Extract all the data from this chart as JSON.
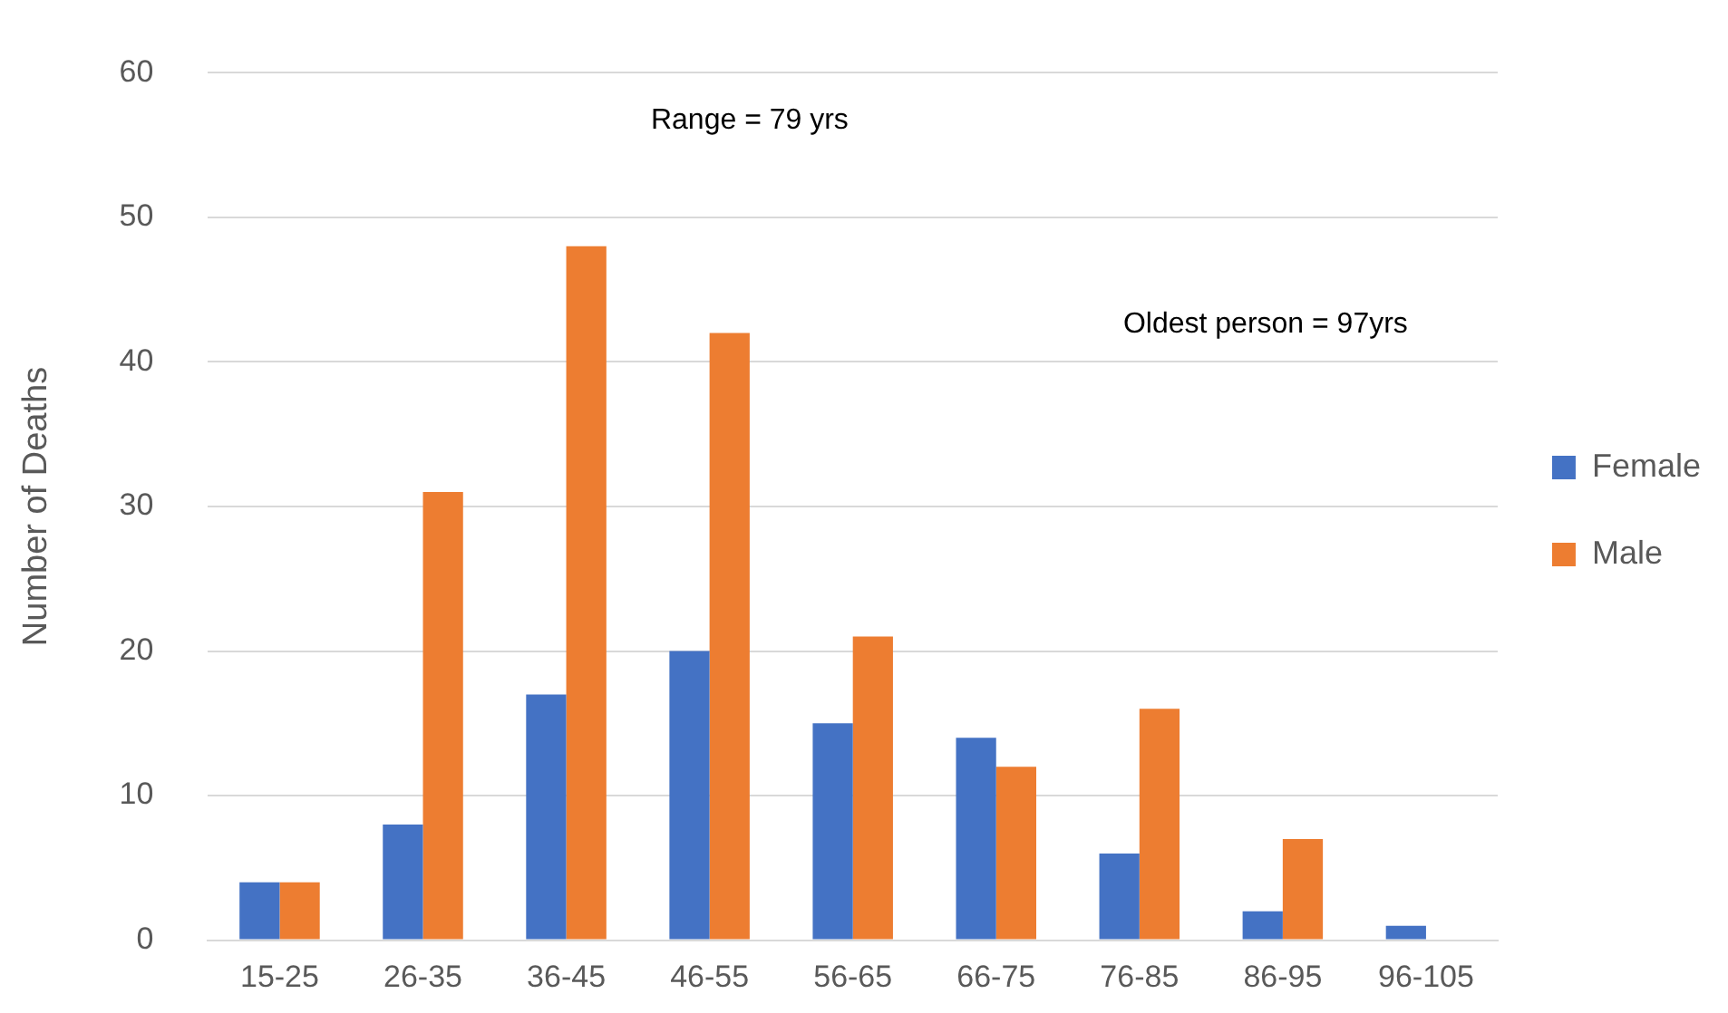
{
  "chart_data": {
    "type": "bar",
    "ylabel": "Number of Deaths",
    "categories": [
      "15-25",
      "26-35",
      "36-45",
      "46-55",
      "56-65",
      "66-75",
      "76-85",
      "86-95",
      "96-105"
    ],
    "series": [
      {
        "name": "Female",
        "color": "#4472c4",
        "values": [
          4,
          8,
          17,
          20,
          15,
          14,
          6,
          2,
          1
        ]
      },
      {
        "name": "Male",
        "color": "#ed7d31",
        "values": [
          4,
          31,
          48,
          42,
          21,
          12,
          16,
          7,
          0
        ]
      }
    ],
    "ylim": [
      0,
      60
    ],
    "yticks": [
      0,
      10,
      20,
      30,
      40,
      50,
      60
    ],
    "grid": "y",
    "legend": "right",
    "annotations": [
      "Range = 79 yrs",
      "Oldest person = 97yrs"
    ]
  }
}
